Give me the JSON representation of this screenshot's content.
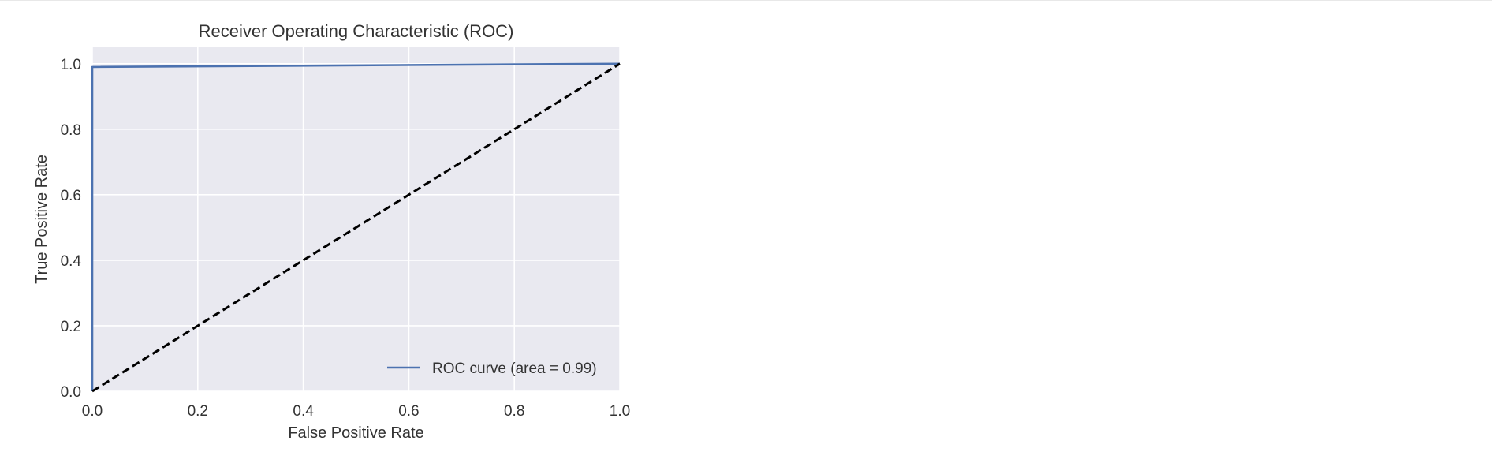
{
  "chart_data": {
    "type": "line",
    "title": "Receiver Operating Characteristic (ROC)",
    "xlabel": "False Positive Rate",
    "ylabel": "True Positive Rate",
    "xlim": [
      0.0,
      1.0
    ],
    "ylim": [
      0.0,
      1.05
    ],
    "xticks": [
      0.0,
      0.2,
      0.4,
      0.6,
      0.8,
      1.0
    ],
    "yticks": [
      0.0,
      0.2,
      0.4,
      0.6,
      0.8,
      1.0
    ],
    "xtick_labels": [
      "0.0",
      "0.2",
      "0.4",
      "0.6",
      "0.8",
      "1.0"
    ],
    "ytick_labels": [
      "0.0",
      "0.2",
      "0.4",
      "0.6",
      "0.8",
      "1.0"
    ],
    "grid": true,
    "legend_position": "lower-right",
    "series": [
      {
        "name": "ROC curve (area = 0.99)",
        "color": "#4c72b0",
        "style": "solid",
        "x": [
          0.0,
          0.0,
          1.0
        ],
        "y": [
          0.0,
          0.99,
          1.0
        ]
      },
      {
        "color": "#000000",
        "style": "dashed",
        "x": [
          0.0,
          1.0
        ],
        "y": [
          0.0,
          1.0
        ]
      }
    ],
    "colors": {
      "plot_background": "#e9e9f0",
      "grid": "#ffffff",
      "text": "#333333"
    }
  }
}
